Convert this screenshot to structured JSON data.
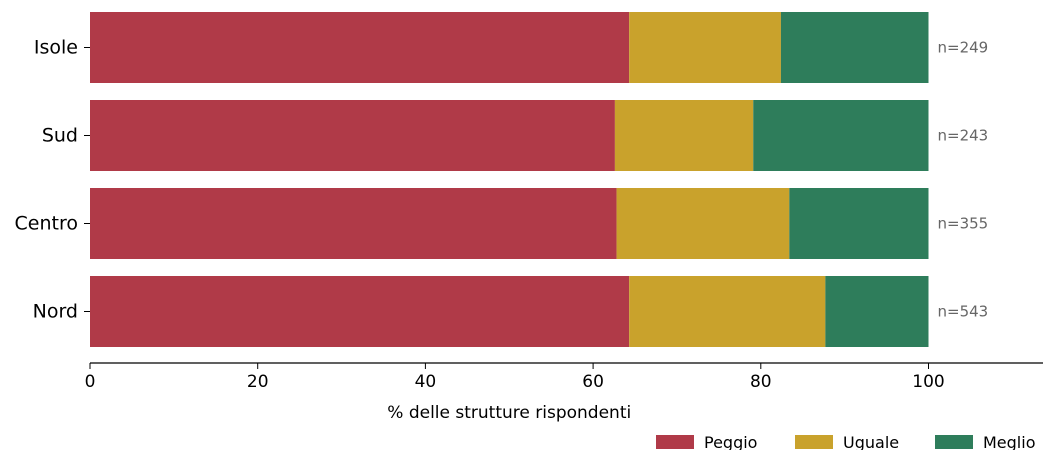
{
  "chart_data": {
    "type": "bar",
    "orientation": "horizontal",
    "stacked": true,
    "categories": [
      "Isole",
      "Sud",
      "Centro",
      "Nord"
    ],
    "series": [
      {
        "name": "Peggio",
        "color": "#b03a48",
        "values": [
          64.3,
          62.6,
          62.8,
          64.3
        ]
      },
      {
        "name": "Uguale",
        "color": "#c9a22c",
        "values": [
          18.1,
          16.5,
          20.6,
          23.4
        ]
      },
      {
        "name": "Meglio",
        "color": "#2e7d5b",
        "values": [
          17.6,
          20.9,
          16.6,
          12.3
        ]
      }
    ],
    "n_labels": [
      "n=249",
      "n=243",
      "n=355",
      "n=543"
    ],
    "xlabel": "% delle strutture rispondenti",
    "ylabel": "",
    "title": "",
    "xlim": [
      0,
      113
    ],
    "xticks": [
      0,
      20,
      40,
      60,
      80,
      100
    ],
    "xtick_labels": [
      "0",
      "20",
      "40",
      "60",
      "80",
      "100"
    ],
    "grid": false,
    "legend_position": "bottom-right"
  }
}
